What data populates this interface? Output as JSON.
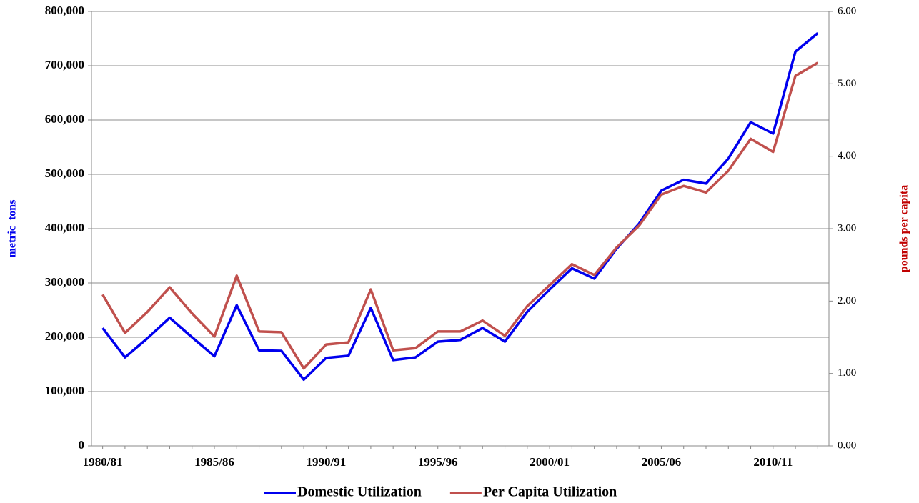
{
  "chart_data": {
    "type": "line",
    "y_label": "metric  tons",
    "y2_label": "pounds per capita",
    "categories": [
      "1980/81",
      null,
      null,
      null,
      null,
      "1985/86",
      null,
      null,
      null,
      null,
      "1990/91",
      null,
      null,
      null,
      null,
      "1995/96",
      null,
      null,
      null,
      null,
      "2000/01",
      null,
      null,
      null,
      null,
      "2005/06",
      null,
      null,
      null,
      null,
      "2010/11",
      null,
      null
    ],
    "series": [
      {
        "name": "Domestic Utilization",
        "color": "#0000ee",
        "values": [
          217000,
          163000,
          198000,
          236000,
          200000,
          165000,
          259000,
          176000,
          175000,
          122000,
          162000,
          166000,
          254000,
          158000,
          163000,
          192000,
          195000,
          217000,
          192000,
          247000,
          288000,
          327000,
          308000,
          363000,
          409000,
          470000,
          490000,
          483000,
          529000,
          596000,
          575000,
          726000,
          760000
        ]
      },
      {
        "name": "Per Capita Utilization",
        "color": "#c0504d",
        "axis": "y2",
        "values": [
          2.09,
          1.56,
          1.85,
          2.19,
          1.83,
          1.51,
          2.35,
          1.58,
          1.57,
          1.07,
          1.4,
          1.43,
          2.16,
          1.32,
          1.35,
          1.58,
          1.58,
          1.73,
          1.52,
          1.93,
          2.22,
          2.51,
          2.36,
          2.74,
          3.04,
          3.47,
          3.59,
          3.5,
          3.8,
          4.24,
          4.06,
          5.11,
          5.29
        ]
      }
    ],
    "ylim": [
      0,
      800000
    ],
    "yticks": [
      0,
      {
        "value": 100000,
        "label": "100,000"
      },
      {
        "value": 200000,
        "label": "200,000"
      },
      {
        "value": 300000,
        "label": "300,000"
      },
      {
        "value": 400000,
        "label": "400,000"
      },
      {
        "value": 500000,
        "label": "500,000"
      },
      {
        "value": 600000,
        "label": "600,000"
      },
      {
        "value": 700000,
        "label": "700,000"
      },
      {
        "value": 800000,
        "label": "800,000"
      }
    ],
    "y2lim": [
      0,
      6
    ],
    "y2ticks": [
      {
        "value": 0,
        "label": "0.00"
      },
      {
        "value": 1,
        "label": "1.00"
      },
      {
        "value": 2,
        "label": "2.00"
      },
      {
        "value": 3,
        "label": "3.00"
      },
      {
        "value": 4,
        "label": "4.00"
      },
      {
        "value": 5,
        "label": "5.00"
      },
      {
        "value": 6,
        "label": "6.00"
      }
    ],
    "grid": true,
    "legend": "bottom"
  }
}
